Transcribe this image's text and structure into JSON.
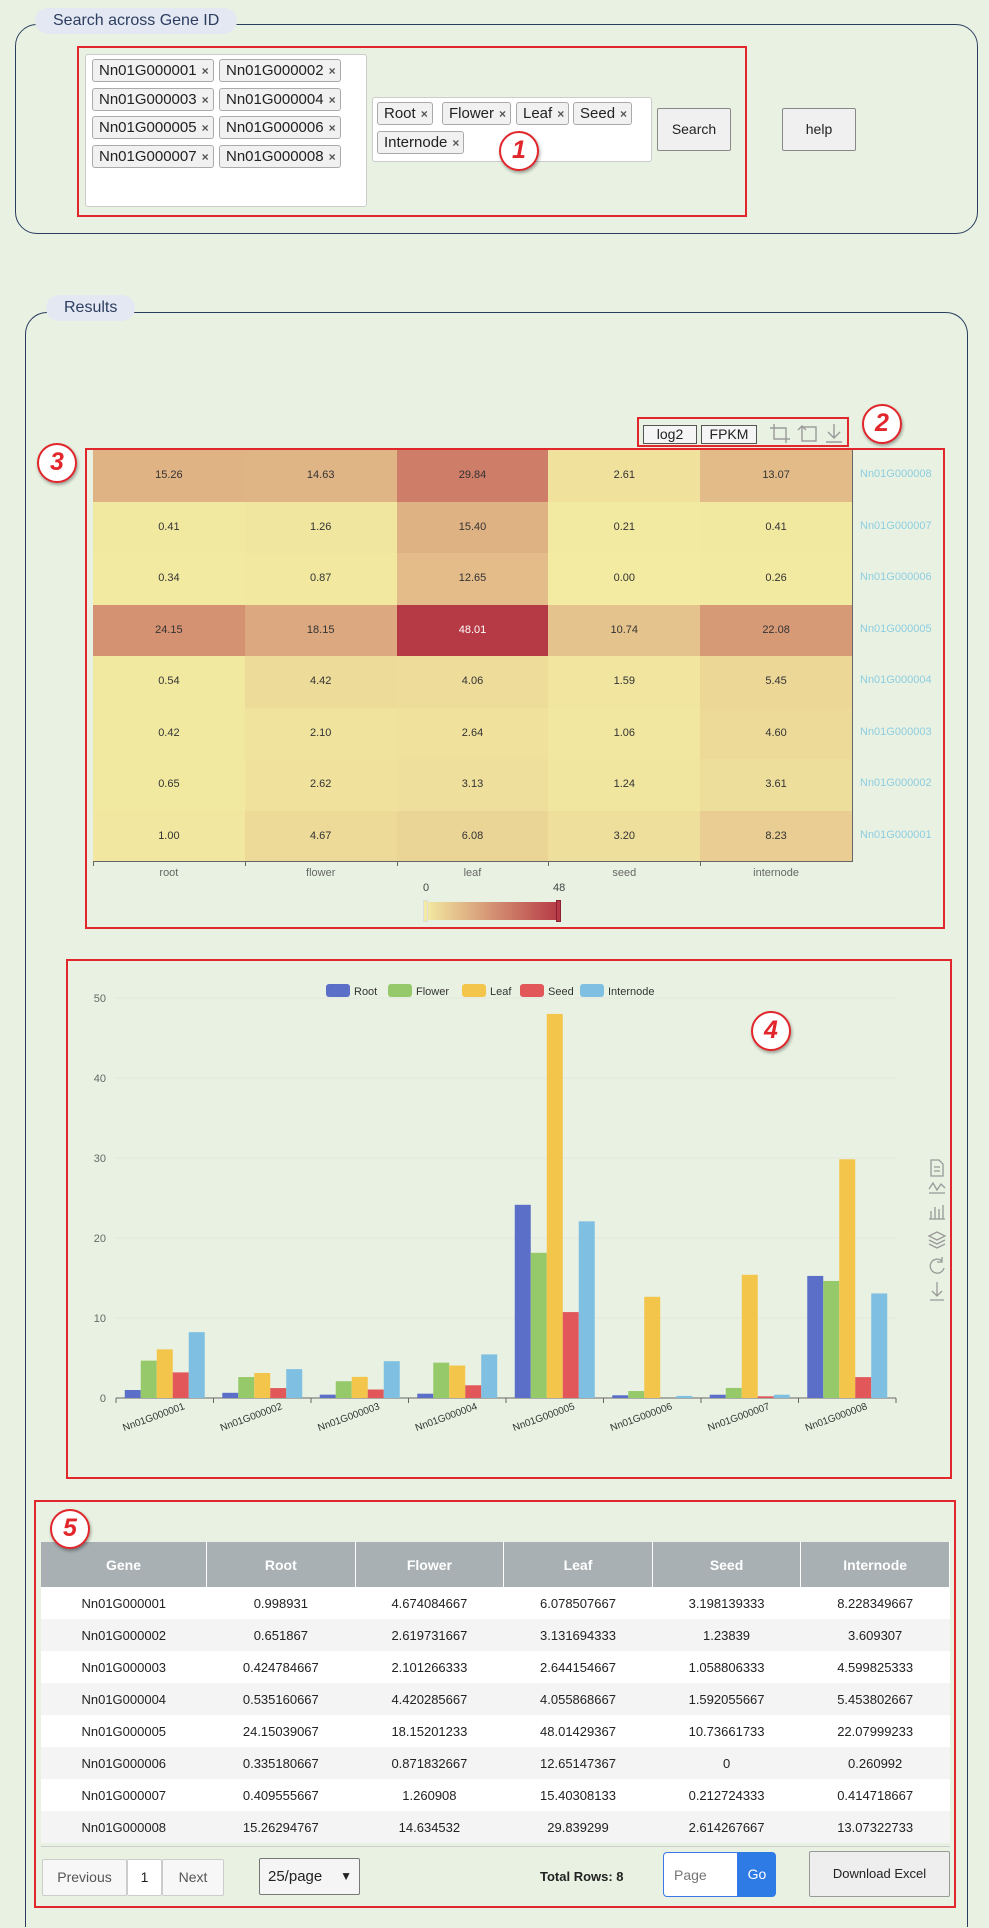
{
  "search": {
    "legend": "Search across Gene ID",
    "genes": [
      "Nn01G000001",
      "Nn01G000002",
      "Nn01G000003",
      "Nn01G000004",
      "Nn01G000005",
      "Nn01G000006",
      "Nn01G000007",
      "Nn01G000008"
    ],
    "tissues": [
      "Root",
      "Flower",
      "Leaf",
      "Seed",
      "Internode"
    ],
    "search_label": "Search",
    "help_label": "help"
  },
  "results": {
    "legend": "Results"
  },
  "badges": [
    "1",
    "2",
    "3",
    "4",
    "5"
  ],
  "heatmap": {
    "toolbar": {
      "log2": "log2",
      "fpkm": "FPKM"
    },
    "columns": [
      "root",
      "flower",
      "leaf",
      "seed",
      "internode"
    ],
    "rows": [
      {
        "gene": "Nn01G000008",
        "values": [
          "15.26",
          "14.63",
          "29.84",
          "2.61",
          "13.07"
        ]
      },
      {
        "gene": "Nn01G000007",
        "values": [
          "0.41",
          "1.26",
          "15.40",
          "0.21",
          "0.41"
        ]
      },
      {
        "gene": "Nn01G000006",
        "values": [
          "0.34",
          "0.87",
          "12.65",
          "0.00",
          "0.26"
        ]
      },
      {
        "gene": "Nn01G000005",
        "values": [
          "24.15",
          "18.15",
          "48.01",
          "10.74",
          "22.08"
        ]
      },
      {
        "gene": "Nn01G000004",
        "values": [
          "0.54",
          "4.42",
          "4.06",
          "1.59",
          "5.45"
        ]
      },
      {
        "gene": "Nn01G000003",
        "values": [
          "0.42",
          "2.10",
          "2.64",
          "1.06",
          "4.60"
        ]
      },
      {
        "gene": "Nn01G000002",
        "values": [
          "0.65",
          "2.62",
          "3.13",
          "1.24",
          "3.61"
        ]
      },
      {
        "gene": "Nn01G000001",
        "values": [
          "1.00",
          "4.67",
          "6.08",
          "3.20",
          "8.23"
        ]
      }
    ],
    "scale_min": "0",
    "scale_max": "48",
    "colors": {
      "low": "#f3eba2",
      "high": "#b63a45"
    }
  },
  "chart_data": {
    "type": "bar",
    "categories": [
      "Nn01G000001",
      "Nn01G000002",
      "Nn01G000003",
      "Nn01G000004",
      "Nn01G000005",
      "Nn01G000006",
      "Nn01G000007",
      "Nn01G000008"
    ],
    "series": [
      {
        "name": "Root",
        "color": "#5b6fc8",
        "values": [
          1.0,
          0.65,
          0.42,
          0.54,
          24.15,
          0.34,
          0.41,
          15.26
        ]
      },
      {
        "name": "Flower",
        "color": "#96c96a",
        "values": [
          4.67,
          2.62,
          2.1,
          4.42,
          18.15,
          0.87,
          1.26,
          14.63
        ]
      },
      {
        "name": "Leaf",
        "color": "#f3c54b",
        "values": [
          6.08,
          3.13,
          2.64,
          4.06,
          48.01,
          12.65,
          15.4,
          29.84
        ]
      },
      {
        "name": "Seed",
        "color": "#e2575a",
        "values": [
          3.2,
          1.24,
          1.06,
          1.59,
          10.74,
          0.0,
          0.21,
          2.61
        ]
      },
      {
        "name": "Internode",
        "color": "#7fc0e2",
        "values": [
          8.23,
          3.61,
          4.6,
          5.45,
          22.08,
          0.26,
          0.41,
          13.07
        ]
      }
    ],
    "ylim": [
      0,
      50
    ],
    "yticks": [
      "0",
      "10",
      "20",
      "30",
      "40",
      "50"
    ],
    "legend_position": "top-center",
    "grid": true
  },
  "table": {
    "headers": [
      "Gene",
      "Root",
      "Flower",
      "Leaf",
      "Seed",
      "Internode"
    ],
    "rows": [
      [
        "Nn01G000001",
        "0.998931",
        "4.674084667",
        "6.078507667",
        "3.198139333",
        "8.228349667"
      ],
      [
        "Nn01G000002",
        "0.651867",
        "2.619731667",
        "3.131694333",
        "1.23839",
        "3.609307"
      ],
      [
        "Nn01G000003",
        "0.424784667",
        "2.101266333",
        "2.644154667",
        "1.058806333",
        "4.599825333"
      ],
      [
        "Nn01G000004",
        "0.535160667",
        "4.420285667",
        "4.055868667",
        "1.592055667",
        "5.453802667"
      ],
      [
        "Nn01G000005",
        "24.15039067",
        "18.15201233",
        "48.01429367",
        "10.73661733",
        "22.07999233"
      ],
      [
        "Nn01G000006",
        "0.335180667",
        "0.871832667",
        "12.65147367",
        "0",
        "0.260992"
      ],
      [
        "Nn01G000007",
        "0.409555667",
        "1.260908",
        "15.40308133",
        "0.212724333",
        "0.414718667"
      ],
      [
        "Nn01G000008",
        "15.26294767",
        "14.634532",
        "29.839299",
        "2.614267667",
        "13.07322733"
      ]
    ]
  },
  "pagination": {
    "previous": "Previous",
    "page": "1",
    "next": "Next",
    "page_size": "25/page",
    "total_rows": "Total Rows: 8",
    "page_placeholder": "Page",
    "go": "Go",
    "download": "Download Excel"
  }
}
